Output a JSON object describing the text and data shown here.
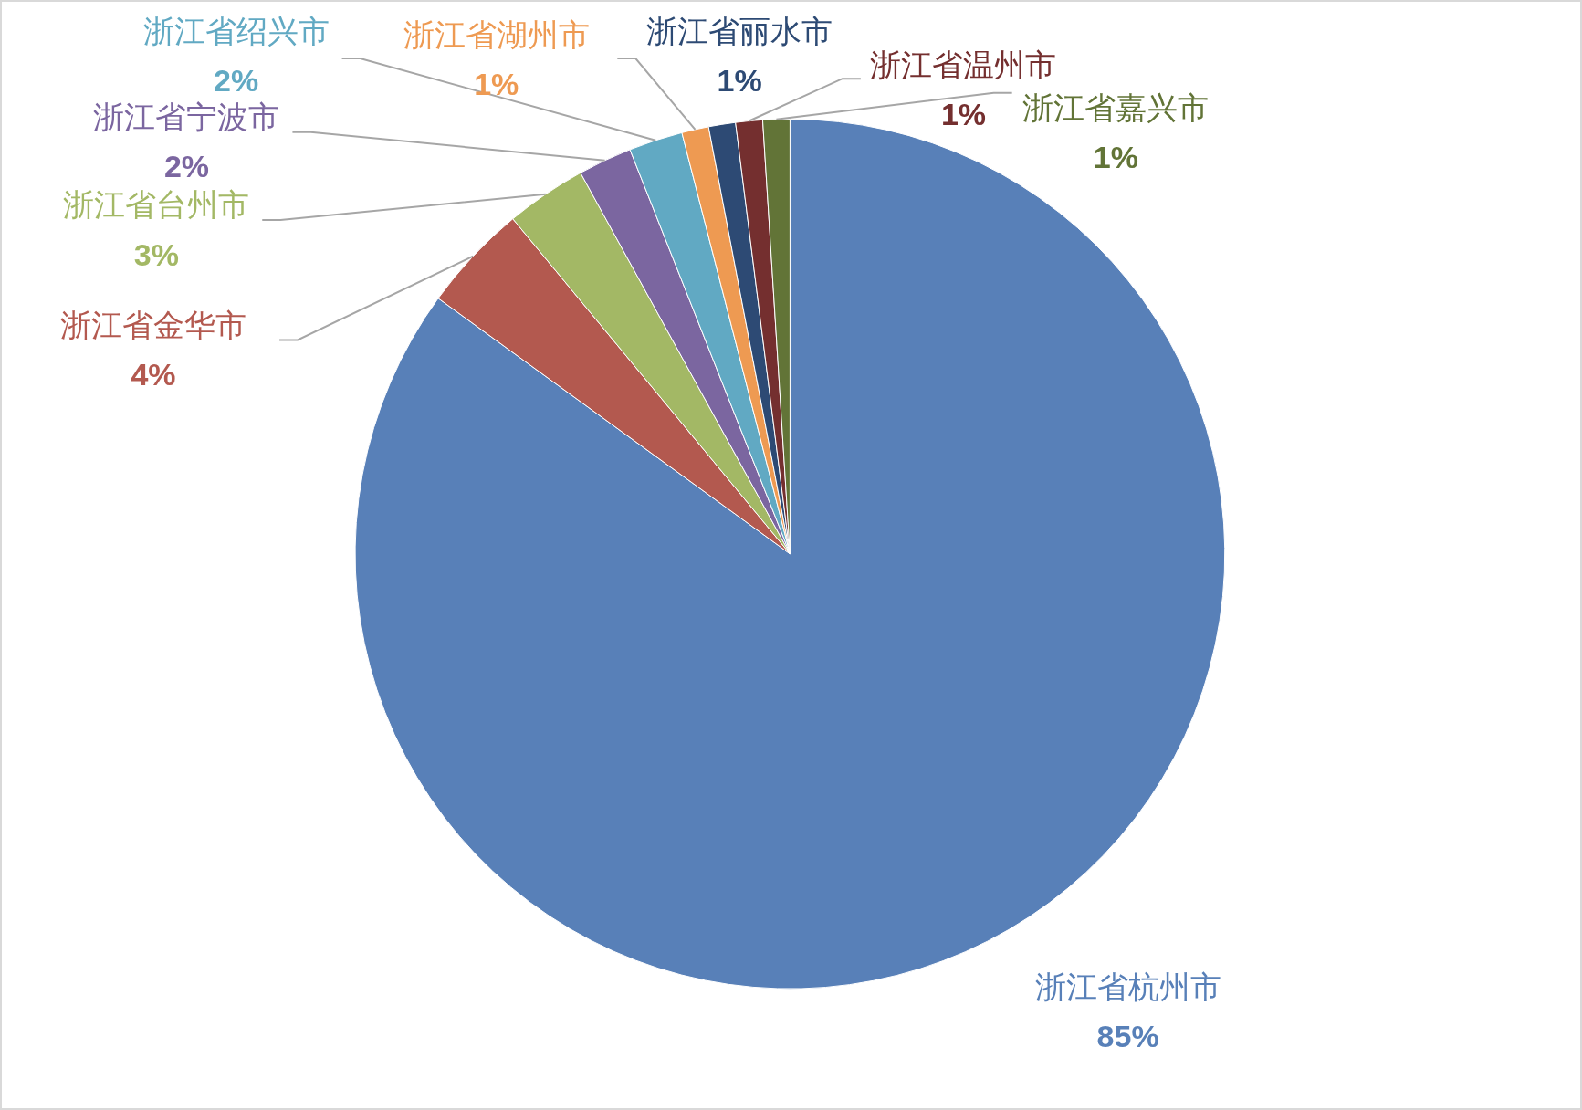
{
  "chart_data": {
    "type": "pie",
    "categories": [
      "浙江省杭州市",
      "浙江省金华市",
      "浙江省台州市",
      "浙江省宁波市",
      "浙江省绍兴市",
      "浙江省湖州市",
      "浙江省丽水市",
      "浙江省温州市",
      "浙江省嘉兴市"
    ],
    "values": [
      85,
      4,
      3,
      2,
      2,
      1,
      1,
      1,
      1
    ],
    "colors": [
      "#5880b8",
      "#b3594f",
      "#a3b865",
      "#7b66a0",
      "#61a9c3",
      "#ee9a52",
      "#2d4a74",
      "#742f2f",
      "#627437"
    ],
    "value_labels": [
      "85%",
      "4%",
      "3%",
      "2%",
      "2%",
      "1%",
      "1%",
      "1%",
      "1%"
    ]
  }
}
